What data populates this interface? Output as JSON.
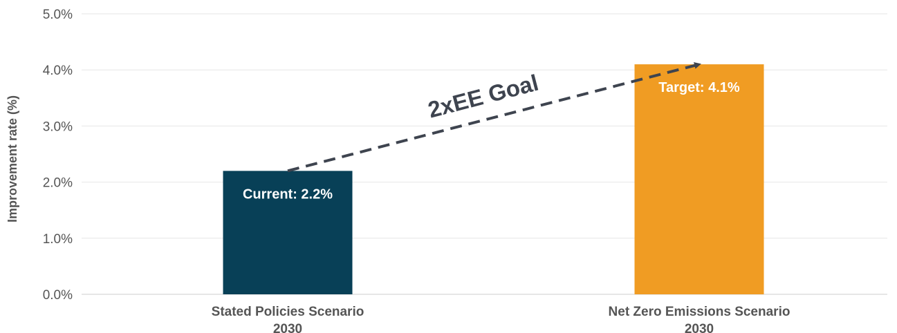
{
  "chart_data": {
    "type": "bar",
    "categories": [
      [
        "Stated Policies Scenario",
        "2030"
      ],
      [
        "Net Zero Emissions Scenario",
        "2030"
      ]
    ],
    "values": [
      2.2,
      4.1
    ],
    "data_labels": [
      "Current: 2.2%",
      "Target: 4.1%"
    ],
    "colors": [
      "#084057",
      "#f09c23"
    ],
    "ylabel": "Improvement rate (%)",
    "ylim": [
      0,
      5
    ],
    "yticks": [
      "0.0%",
      "1.0%",
      "2.0%",
      "3.0%",
      "4.0%",
      "5.0%"
    ],
    "grid": true,
    "annotation": {
      "text": "2xEE Goal",
      "from": [
        0,
        2.2
      ],
      "to": [
        1,
        4.1
      ],
      "color": "#3e444f"
    }
  }
}
